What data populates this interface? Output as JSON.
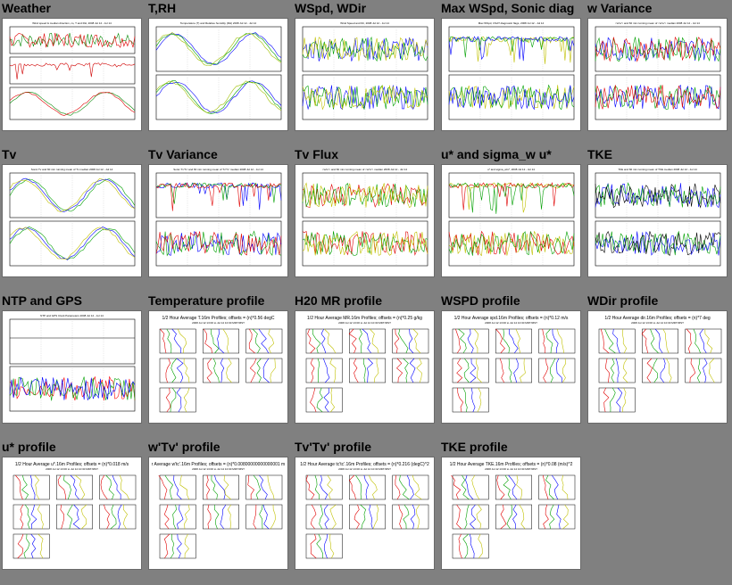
{
  "plots": [
    {
      "title": "Weather",
      "caption": "Wind speed & median direction, co, T and RH, 2008 Jul 12 - Jul 14",
      "kind": "timeseries3",
      "colors": [
        "#0a8a0a",
        "#e00000",
        "#d00000"
      ]
    },
    {
      "title": "T,RH",
      "caption": "Temperature (T) and Relative humidity (RH) 2008 Jul 12 - Jul 14",
      "kind": "diurnal2",
      "colors": [
        "#0000ff",
        "#00a000",
        "#a0c000"
      ]
    },
    {
      "title": "WSpd, WDir",
      "caption": "Wind Speed and Dir, 2008 Jul 12 - Jul 14",
      "kind": "noisy2",
      "colors": [
        "#0000ff",
        "#00a000",
        "#c0c000"
      ]
    },
    {
      "title": "Max WSpd, Sonic diag",
      "caption": "Max WSpd, CSAT diagnostic flags, 2008 Jul 12 - Jul 14",
      "kind": "spiky2",
      "colors": [
        "#c0c000",
        "#00a000",
        "#0000ff"
      ]
    },
    {
      "title": "w Variance",
      "caption": "<w'w'> and 60 min running mean of <w'w'> median 2008 Jul 12 - Jul 14",
      "kind": "noisy2",
      "colors": [
        "#0000ff",
        "#00a000",
        "#e00000"
      ]
    },
    {
      "title": "Tv",
      "caption": "Sonic Tv and 60 min running mean of Tv median 2008 Jul 12 - Jul 14",
      "kind": "diurnal2",
      "colors": [
        "#00a000",
        "#0000ff",
        "#c0c000"
      ]
    },
    {
      "title": "Tv Variance",
      "caption": "Sonic Tv'Tv' and 60 min running mean of Tv'Tv' median 2008 Jul 12 - Jul 14",
      "kind": "spiky2",
      "colors": [
        "#0000ff",
        "#00a000",
        "#e00000"
      ]
    },
    {
      "title": "Tv Flux",
      "caption": "<w'tv'> and 60 min running mean of <w'tv'> median 2008 Jul 12 - Jul 14",
      "kind": "noisy2",
      "colors": [
        "#e00000",
        "#00a000",
        "#c0c000"
      ]
    },
    {
      "title": "u* and sigma_w u*",
      "caption": "u* and sigma_w/u*, 2008 Jul 12 - Jul 14",
      "kind": "spiky2",
      "colors": [
        "#c0c000",
        "#e00000",
        "#00a000"
      ]
    },
    {
      "title": "TKE",
      "caption": "TKE and 60 min running mean of TKE median 2008 Jul 12 - Jul 14",
      "kind": "noisy2",
      "colors": [
        "#0000ff",
        "#00a000",
        "#000000"
      ]
    },
    {
      "title": "NTP and GPS",
      "caption": "NTP and GPS Clock Parameters 2008 Jul 12 - Jul 14",
      "kind": "ntp",
      "colors": [
        "#ff0000",
        "#00a000",
        "#0000ff"
      ]
    },
    {
      "title": "Temperature profile",
      "caption": "1/2 Hour Average T.16m Profiles; offsets = (n)*0.56 degC",
      "subcaption": "2008 Jul 12 13:00 to Jul 14 10:30 MDT/MST",
      "kind": "profile",
      "colors": [
        "#e00000",
        "#00a000",
        "#0000ff",
        "#c0c000"
      ]
    },
    {
      "title": "H20 MR profile",
      "caption": "1/2 Hour Average MR.16m Profiles; offsets = (n)*0.25 g/kg",
      "subcaption": "2008 Jul 12 13:00 to Jul 14 10:30 MDT/MST",
      "kind": "profile",
      "colors": [
        "#e00000",
        "#00a000",
        "#0000ff",
        "#c0c000"
      ]
    },
    {
      "title": "WSPD profile",
      "caption": "1/2 Hour Average spd.16m Profiles; offsets = (n)*0.12 m/s",
      "subcaption": "2008 Jul 12 13:00 to Jul 14 10:30 MDT/MST",
      "kind": "profile",
      "colors": [
        "#e00000",
        "#00a000",
        "#0000ff",
        "#c0c000"
      ]
    },
    {
      "title": "WDir profile",
      "caption": "1/2 Hour Average dir.16m Profiles; offsets = (n)*7 deg",
      "subcaption": "2008 Jul 12 13:00 to Jul 14 10:30 MDT/MST",
      "kind": "profile",
      "colors": [
        "#e00000",
        "#00a000",
        "#0000ff",
        "#c0c000"
      ]
    },
    {
      "title": "u* profile",
      "caption": "1/2 Hour Average u*.16m Profiles; offsets = (n)*0.018 m/s",
      "subcaption": "2008 Jul 12 13:00 to Jul 14 10:30 MDT/MST",
      "kind": "profile",
      "colors": [
        "#e00000",
        "#00a000",
        "#0000ff",
        "#c0c000"
      ]
    },
    {
      "title": "w'Tv' profile",
      "caption": "r Average w'tc'.16m Profiles; offsets = (n)*0.00800000000000001 m",
      "subcaption": "2008 Jul 12 13:00 to Jul 14 10:30 MDT/MST",
      "kind": "profile",
      "colors": [
        "#e00000",
        "#00a000",
        "#0000ff",
        "#c0c000"
      ]
    },
    {
      "title": "Tv'Tv' profile",
      "caption": "1/2 Hour Average tc'tc'.16m Profiles; offsets = (n)*0.216 (degC)^2",
      "subcaption": "2008 Jul 12 13:00 to Jul 14 10:30 MDT/MST",
      "kind": "profile",
      "colors": [
        "#e00000",
        "#00a000",
        "#0000ff",
        "#c0c000"
      ]
    },
    {
      "title": "TKE profile",
      "caption": "1/2 Hour Average TKE.16m Profiles; offsets = (n)*0.08 (m/s)^2",
      "subcaption": "2008 Jul 12 13:00 to Jul 14 10:30 MDT/MST",
      "kind": "profile",
      "colors": [
        "#e00000",
        "#00a000",
        "#0000ff",
        "#c0c000"
      ]
    }
  ]
}
